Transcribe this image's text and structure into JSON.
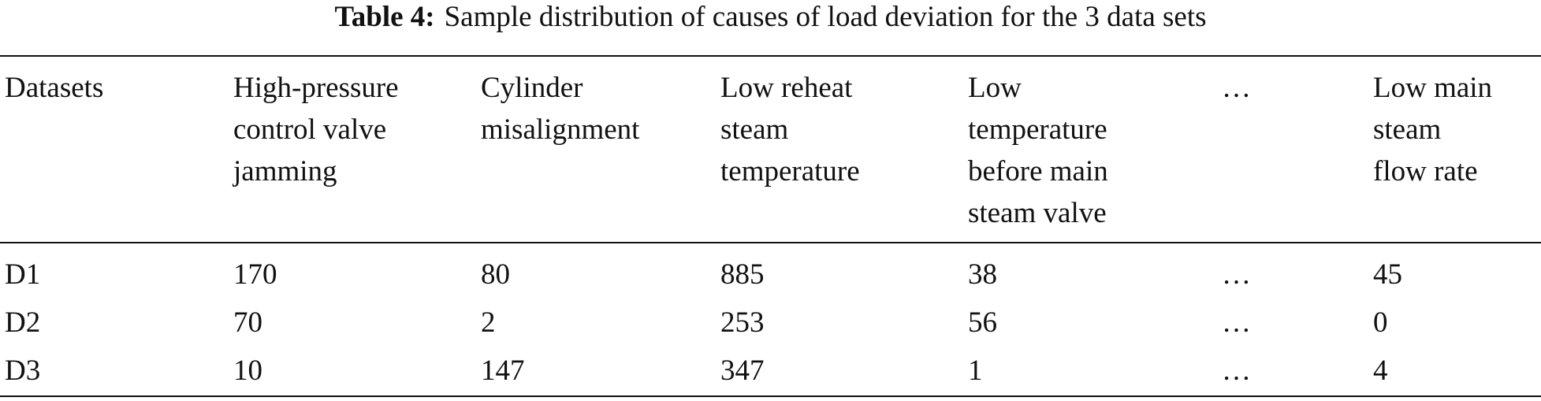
{
  "caption": {
    "label": "Table 4:",
    "text": "Sample distribution of causes of load deviation for the 3 data sets"
  },
  "table": {
    "header": [
      [
        "Datasets"
      ],
      [
        "High-pressure",
        "control valve",
        "jamming"
      ],
      [
        "Cylinder",
        "misalignment"
      ],
      [
        "Low reheat",
        "steam",
        "temperature"
      ],
      [
        "Low",
        "temperature",
        "before main",
        "steam valve"
      ],
      [
        "…"
      ],
      [
        "Low main",
        "steam",
        "flow rate"
      ]
    ],
    "rows": [
      [
        "D1",
        170,
        80,
        885,
        38,
        "…",
        45
      ],
      [
        "D2",
        70,
        2,
        253,
        56,
        "…",
        0
      ],
      [
        "D3",
        10,
        147,
        347,
        1,
        "…",
        4
      ]
    ]
  }
}
